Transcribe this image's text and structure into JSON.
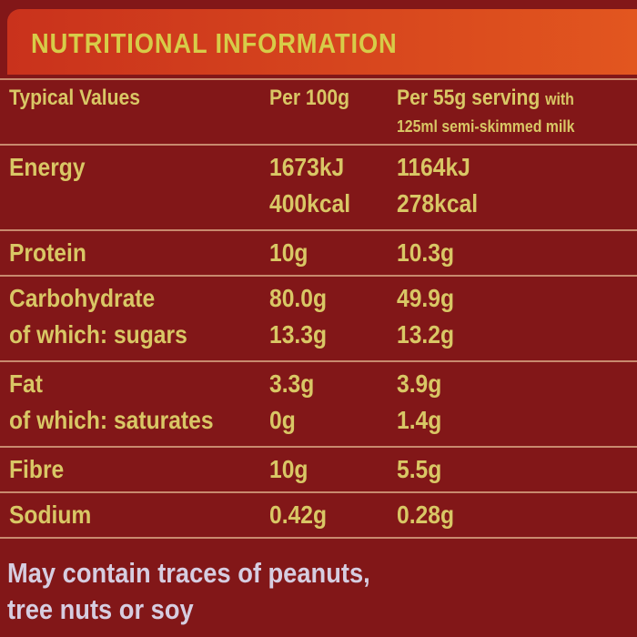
{
  "header": {
    "title": "NUTRITIONAL INFORMATION"
  },
  "table": {
    "head": {
      "label": "Typical Values",
      "per100": "Per 100g",
      "per55": "Per 55g serving",
      "per55_with": "with",
      "per55_note": "125ml semi-skimmed milk"
    },
    "rows": [
      {
        "label": [
          "Energy"
        ],
        "per100": [
          "1673kJ",
          "400kcal"
        ],
        "per55": [
          "1164kJ",
          "278kcal"
        ]
      },
      {
        "label": [
          "Protein"
        ],
        "per100": [
          "10g"
        ],
        "per55": [
          "10.3g"
        ]
      },
      {
        "label": [
          "Carbohydrate",
          "of which: sugars"
        ],
        "per100": [
          "80.0g",
          "13.3g"
        ],
        "per55": [
          "49.9g",
          "13.2g"
        ]
      },
      {
        "label": [
          "Fat",
          "of which: saturates"
        ],
        "per100": [
          "3.3g",
          "0g"
        ],
        "per55": [
          "3.9g",
          "1.4g"
        ]
      },
      {
        "label": [
          "Fibre"
        ],
        "per100": [
          "10g"
        ],
        "per55": [
          "5.5g"
        ]
      },
      {
        "label": [
          "Sodium"
        ],
        "per100": [
          "0.42g"
        ],
        "per55": [
          "0.28g"
        ]
      }
    ]
  },
  "footer": {
    "lines": [
      "May contain traces of peanuts,",
      "tree nuts or soy"
    ]
  }
}
